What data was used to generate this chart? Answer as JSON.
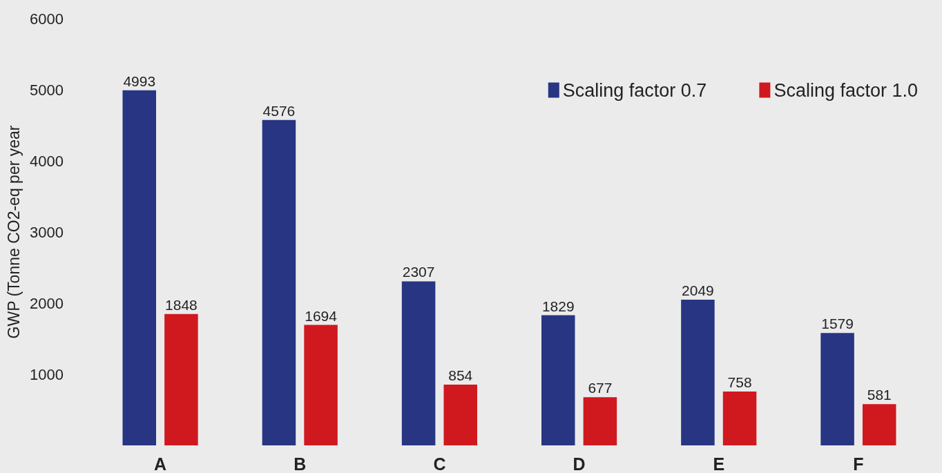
{
  "chart_data": {
    "type": "bar",
    "ylabel": "GWP (Tonne CO2-eq per year",
    "categories": [
      "A",
      "B",
      "C",
      "D",
      "E",
      "F"
    ],
    "series": [
      {
        "name": "Scaling factor 0.7",
        "color": "#283583",
        "values": [
          4993,
          4576,
          2307,
          1829,
          2049,
          1579
        ]
      },
      {
        "name": "Scaling factor 1.0",
        "color": "#d0191f",
        "values": [
          1848,
          1694,
          854,
          677,
          758,
          581
        ]
      }
    ],
    "ylim": [
      0,
      6000
    ],
    "yticks": [
      1000,
      2000,
      3000,
      4000,
      5000,
      6000
    ],
    "data_labels": true,
    "grid": false,
    "legend": "top right"
  }
}
